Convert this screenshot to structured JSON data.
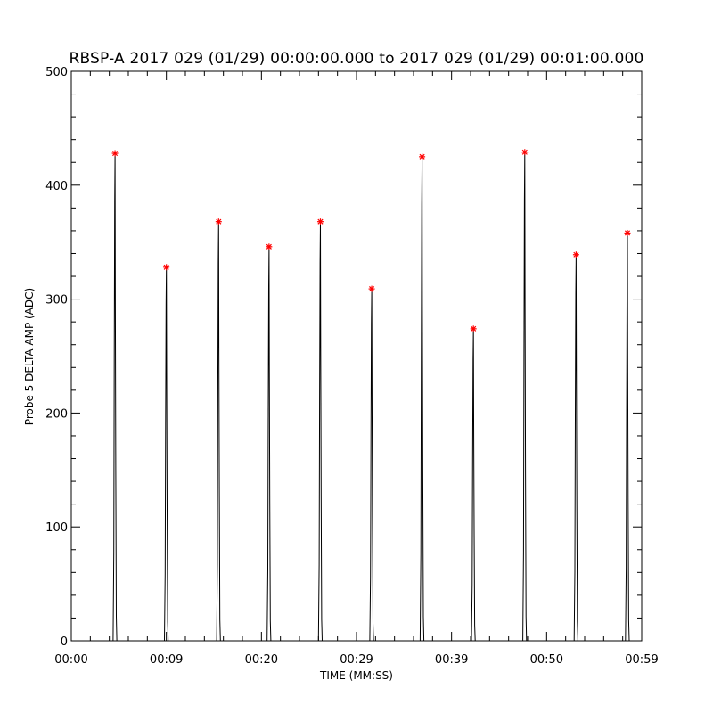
{
  "chart_data": {
    "type": "line",
    "title": "RBSP-A 2017 029 (01/29) 00:00:00.000 to 2017 029 (01/29) 00:01:00.000",
    "xlabel": "TIME (MM:SS)",
    "ylabel": "Probe 5 DELTA AMP (ADC)",
    "xlim": [
      0,
      60
    ],
    "ylim": [
      0,
      500
    ],
    "x_tick_values": [
      0,
      10,
      20,
      30,
      40,
      50,
      60
    ],
    "x_tick_labels": [
      "00:00",
      "00:09",
      "00:20",
      "00:29",
      "00:39",
      "00:50",
      "00:59"
    ],
    "y_tick_values": [
      0,
      100,
      200,
      300,
      400,
      500
    ],
    "y_tick_labels": [
      "0",
      "100",
      "200",
      "300",
      "400",
      "500"
    ],
    "grid": false,
    "series": [
      {
        "color": "#000000",
        "style": "spikes",
        "peaks": [
          {
            "x": 4.6,
            "y": 428
          },
          {
            "x": 10.0,
            "y": 328
          },
          {
            "x": 15.5,
            "y": 368
          },
          {
            "x": 20.8,
            "y": 346
          },
          {
            "x": 26.2,
            "y": 368
          },
          {
            "x": 31.6,
            "y": 309
          },
          {
            "x": 36.9,
            "y": 425
          },
          {
            "x": 42.3,
            "y": 274
          },
          {
            "x": 47.7,
            "y": 429
          },
          {
            "x": 53.1,
            "y": 339
          },
          {
            "x": 58.5,
            "y": 358
          }
        ]
      },
      {
        "color": "#ff0000",
        "style": "asterisk-markers",
        "x": [
          4.6,
          10.0,
          15.5,
          20.8,
          26.2,
          31.6,
          36.9,
          42.3,
          47.7,
          53.1,
          58.5
        ],
        "y": [
          428,
          328,
          368,
          346,
          368,
          309,
          425,
          274,
          429,
          339,
          358
        ]
      }
    ]
  }
}
